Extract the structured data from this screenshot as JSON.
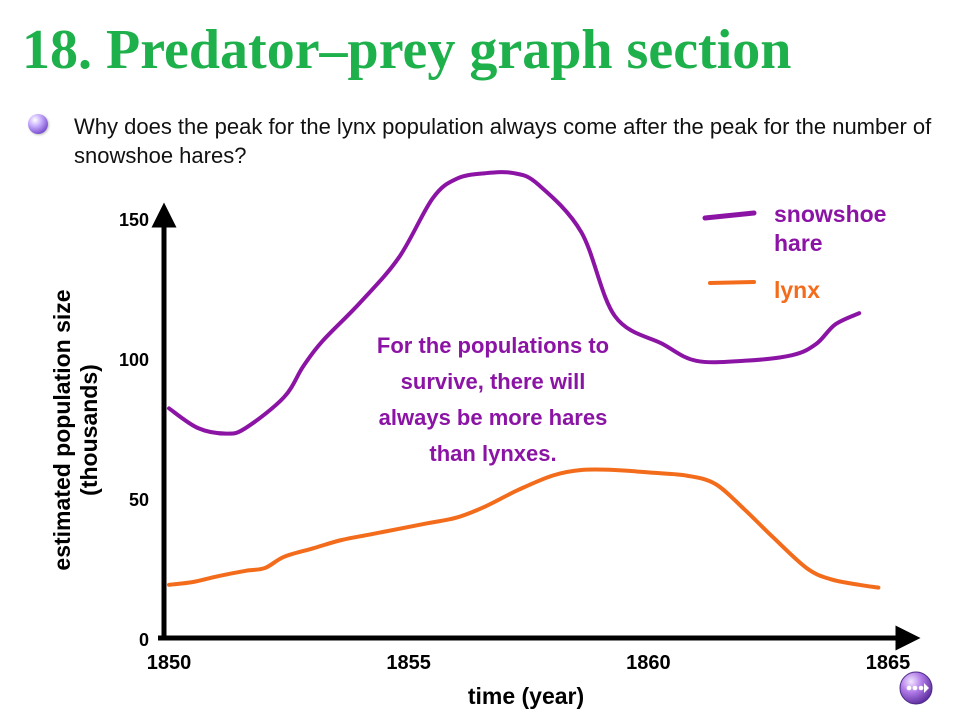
{
  "slide": {
    "title": "18.  Predator–prey graph section",
    "question": "Why does the peak for the lynx population always come after the peak for the number of snowshoe hares?",
    "title_color": "#1db04b"
  },
  "chart_data": {
    "type": "line",
    "title": "",
    "xlabel": "time (year)",
    "ylabel": "estimated population size",
    "ylabel_unit": "(thousands)",
    "xlim": [
      1850,
      1865
    ],
    "ylim": [
      0,
      150
    ],
    "x_ticks": [
      "1850",
      "1855",
      "1860",
      "1865"
    ],
    "y_ticks": [
      "0",
      "50",
      "100",
      "150"
    ],
    "grid": false,
    "legend_placement": "top-right",
    "series": [
      {
        "name": "snowshoe hare",
        "color": "#8b14a5",
        "x": [
          1850,
          1850.6,
          1851.2,
          1851.6,
          1852.4,
          1852.8,
          1853.2,
          1854.0,
          1854.8,
          1855.5,
          1856.0,
          1856.6,
          1857.2,
          1857.7,
          1858.6,
          1859.3,
          1860.3,
          1861.0,
          1862.0,
          1863.0,
          1863.5,
          1863.9,
          1864.4
        ],
        "values": [
          82,
          75,
          73,
          75,
          86,
          97,
          106,
          120,
          136,
          157,
          164,
          166,
          166,
          162,
          145,
          115,
          105,
          99,
          99,
          101,
          105,
          112,
          116
        ]
      },
      {
        "name": "lynx",
        "color": "#f36c1c",
        "x": [
          1850,
          1850.5,
          1851.0,
          1851.6,
          1852.0,
          1852.4,
          1853.0,
          1853.6,
          1854.2,
          1854.8,
          1855.4,
          1856.0,
          1856.6,
          1857.3,
          1858.0,
          1858.6,
          1859.3,
          1860.1,
          1860.8,
          1861.4,
          1862.0,
          1862.6,
          1863.3,
          1863.8,
          1864.4,
          1864.8
        ],
        "values": [
          19,
          20,
          22,
          24,
          25,
          29,
          32,
          35,
          37,
          39,
          41,
          43,
          47,
          53,
          58,
          60,
          60,
          59,
          58,
          55,
          46,
          36,
          25,
          21,
          19,
          18
        ]
      }
    ],
    "annotation": "For the populations to survive, there will always be more hares than lynxes."
  },
  "nav": {
    "advance_icon": "ellipsis-forward-icon"
  }
}
